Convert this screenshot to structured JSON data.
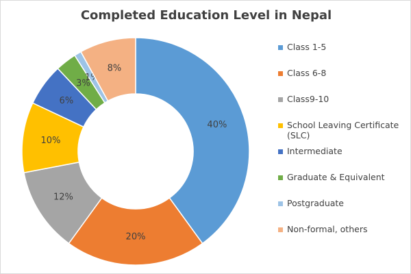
{
  "chart_data": {
    "type": "donut",
    "title": "Completed Education Level in Nepal",
    "categories": [
      "Class 1-5",
      "Class 6-8",
      "Class9-10",
      "School Leaving Certificate (SLC)",
      "Intermediate",
      "Graduate & Equivalent",
      "Postgraduate",
      "Non-formal, others"
    ],
    "values": [
      40,
      20,
      12,
      10,
      6,
      3,
      1,
      8
    ],
    "value_labels": [
      "40%",
      "20%",
      "12%",
      "10%",
      "6%",
      "3%",
      "1%",
      "8%"
    ],
    "colors": [
      "#5b9bd5",
      "#ed7d31",
      "#a5a5a5",
      "#ffc000",
      "#4472c4",
      "#70ad47",
      "#9dc3e6",
      "#f4b183"
    ],
    "legend": "right"
  }
}
